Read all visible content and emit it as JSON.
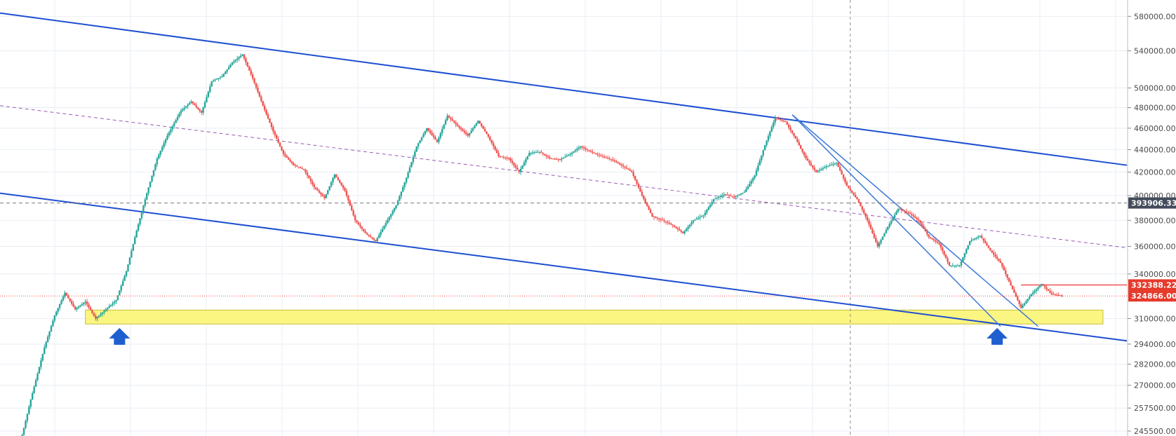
{
  "chart_data": {
    "type": "candlestick",
    "title": "",
    "xlabel": "",
    "ylabel": "",
    "y_scale": "log",
    "ylim": [
      243000,
      600000
    ],
    "grid": true,
    "y_ticks": [
      580000,
      540000,
      500000,
      480000,
      460000,
      440000,
      420000,
      400000,
      380000,
      360000,
      340000,
      310000,
      294000,
      282000,
      270000,
      257500,
      245500
    ],
    "y_tick_labels": [
      "580000.00",
      "540000.00",
      "500000.00",
      "480000.00",
      "460000.00",
      "440000.00",
      "420000.00",
      "400000.00",
      "380000.00",
      "360000.00",
      "340000.00",
      "310000.00",
      "294000.00",
      "282000.00",
      "270000.00",
      "257500.00",
      "245500.00"
    ],
    "price_path": [
      [
        0,
        240000
      ],
      [
        3,
        262000
      ],
      [
        7,
        292000
      ],
      [
        10,
        312000
      ],
      [
        13,
        327000
      ],
      [
        16,
        316000
      ],
      [
        19,
        321000
      ],
      [
        22,
        310000
      ],
      [
        25,
        316000
      ],
      [
        28,
        322000
      ],
      [
        31,
        342000
      ],
      [
        34,
        372000
      ],
      [
        37,
        402000
      ],
      [
        40,
        432000
      ],
      [
        43,
        453000
      ],
      [
        47,
        477000
      ],
      [
        50,
        486000
      ],
      [
        53,
        475000
      ],
      [
        56,
        507000
      ],
      [
        59,
        512000
      ],
      [
        62,
        527000
      ],
      [
        65,
        536000
      ],
      [
        68,
        510000
      ],
      [
        71,
        482000
      ],
      [
        74,
        457000
      ],
      [
        77,
        436000
      ],
      [
        80,
        426000
      ],
      [
        83,
        422000
      ],
      [
        86,
        407000
      ],
      [
        89,
        398000
      ],
      [
        92,
        418000
      ],
      [
        95,
        404000
      ],
      [
        98,
        380000
      ],
      [
        101,
        370000
      ],
      [
        104,
        364000
      ],
      [
        107,
        378000
      ],
      [
        110,
        392000
      ],
      [
        113,
        415000
      ],
      [
        116,
        443000
      ],
      [
        119,
        460000
      ],
      [
        122,
        447000
      ],
      [
        125,
        472000
      ],
      [
        128,
        462000
      ],
      [
        131,
        453000
      ],
      [
        134,
        467000
      ],
      [
        137,
        452000
      ],
      [
        140,
        434000
      ],
      [
        143,
        432000
      ],
      [
        146,
        420000
      ],
      [
        149,
        437000
      ],
      [
        152,
        438000
      ],
      [
        155,
        432000
      ],
      [
        158,
        431000
      ],
      [
        161,
        436000
      ],
      [
        164,
        443000
      ],
      [
        167,
        438000
      ],
      [
        170,
        434000
      ],
      [
        173,
        431000
      ],
      [
        176,
        426000
      ],
      [
        179,
        420000
      ],
      [
        182,
        400000
      ],
      [
        185,
        383000
      ],
      [
        188,
        380000
      ],
      [
        191,
        376000
      ],
      [
        194,
        370000
      ],
      [
        197,
        380000
      ],
      [
        200,
        384000
      ],
      [
        203,
        397000
      ],
      [
        206,
        401000
      ],
      [
        209,
        399000
      ],
      [
        212,
        403000
      ],
      [
        215,
        417000
      ],
      [
        218,
        444000
      ],
      [
        221,
        470000
      ],
      [
        224,
        466000
      ],
      [
        227,
        450000
      ],
      [
        230,
        432000
      ],
      [
        233,
        420000
      ],
      [
        236,
        425000
      ],
      [
        239,
        428000
      ],
      [
        242,
        408000
      ],
      [
        245,
        397000
      ],
      [
        248,
        380000
      ],
      [
        251,
        360000
      ],
      [
        254,
        375000
      ],
      [
        257,
        389000
      ],
      [
        260,
        386000
      ],
      [
        263,
        380000
      ],
      [
        266,
        367000
      ],
      [
        269,
        362000
      ],
      [
        272,
        346000
      ],
      [
        275,
        346000
      ],
      [
        278,
        364000
      ],
      [
        281,
        368000
      ],
      [
        284,
        357000
      ],
      [
        287,
        348000
      ],
      [
        290,
        332000
      ],
      [
        293,
        317000
      ],
      [
        296,
        326000
      ],
      [
        299,
        333000
      ],
      [
        302,
        326000
      ],
      [
        305,
        325000
      ]
    ],
    "series": [
      {
        "name": "",
        "type": "trendline",
        "points": [
          [
            -6,
            584000
          ],
          [
            324,
            426000
          ]
        ]
      },
      {
        "name": "",
        "type": "trendline",
        "points": [
          [
            -6,
            402000
          ],
          [
            324,
            296000
          ]
        ]
      },
      {
        "name": "",
        "type": "trendline-dashed",
        "points": [
          [
            -6,
            482000
          ],
          [
            324,
            359000
          ]
        ]
      },
      {
        "name": "",
        "type": "trendline",
        "points": [
          [
            226,
            473000
          ],
          [
            287,
            305000
          ]
        ]
      },
      {
        "name": "",
        "type": "trendline",
        "points": [
          [
            226,
            473000
          ],
          [
            298,
            305000
          ]
        ]
      },
      {
        "name": "",
        "type": "horizontal-dashed",
        "value": 393906.33
      },
      {
        "name": "",
        "type": "horizontal-dotted",
        "value": 324866.0
      },
      {
        "name": "",
        "type": "horizontal-ray",
        "start_x": 293,
        "value": 332388.22
      }
    ],
    "support_zone": {
      "start_x": 19,
      "end_x": 317,
      "low": 306500,
      "high": 315500,
      "color": "#fbf582"
    },
    "markers": [
      {
        "name": "",
        "type": "up-arrow",
        "x": 29,
        "value": 297000
      },
      {
        "name": "",
        "type": "up-arrow",
        "x": 286,
        "value": 297000
      }
    ],
    "price_tags": [
      {
        "label": "393906.33",
        "value": 393906.33,
        "color": "#444b5a"
      },
      {
        "label": "332388.22",
        "value": 332388.22,
        "color": "#e63a2b"
      },
      {
        "label": "324866.00",
        "value": 324866.0,
        "color": "#e63a2b"
      }
    ],
    "crosshair_x": 243,
    "colors": {
      "up": "#26a69a",
      "down": "#ef5350",
      "channel": "#1e4fd1",
      "fan": "#3a78d8",
      "dashed_line": "#9b59b6",
      "crosshair": "#8a8a8a",
      "grid": "#e8eef4"
    }
  }
}
